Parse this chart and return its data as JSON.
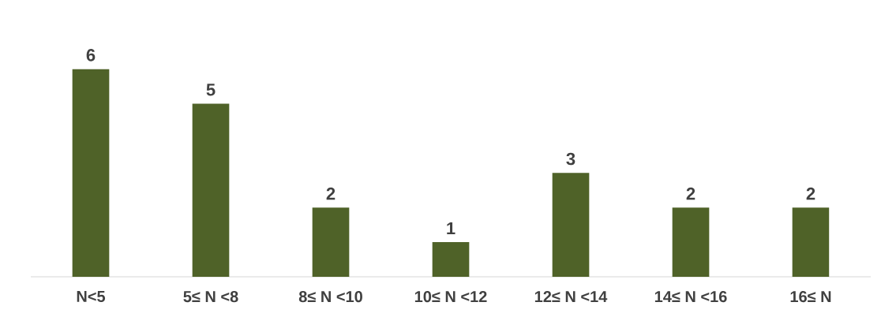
{
  "chart_data": {
    "type": "bar",
    "categories": [
      "N<5",
      "5≤ N <8",
      "8≤ N <10",
      "10≤ N <12",
      "12≤ N <14",
      "14≤ N <16",
      "16≤ N"
    ],
    "values": [
      6,
      5,
      2,
      1,
      3,
      2,
      2
    ],
    "color": "#4f6228",
    "data_labels": true
  }
}
